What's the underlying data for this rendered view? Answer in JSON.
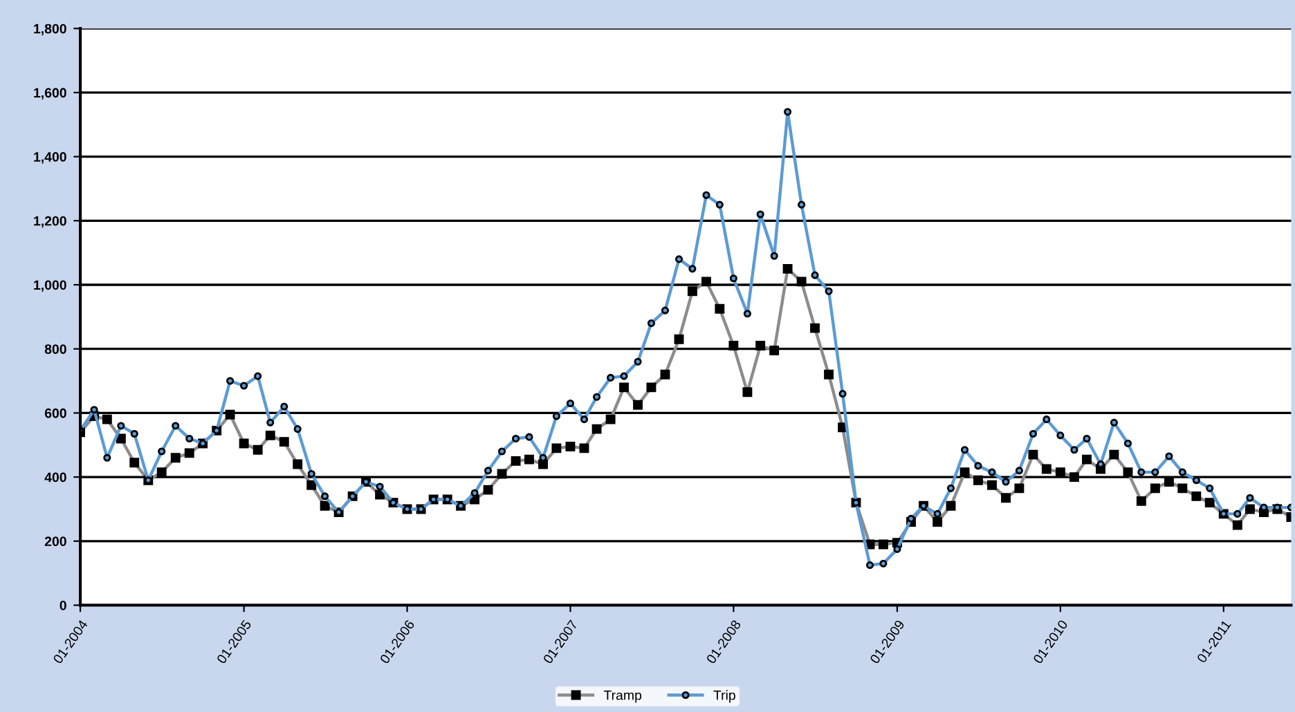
{
  "chart_data": {
    "type": "line",
    "x": [
      "2004-01",
      "2004-02",
      "2004-03",
      "2004-04",
      "2004-05",
      "2004-06",
      "2004-07",
      "2004-08",
      "2004-09",
      "2004-10",
      "2004-11",
      "2004-12",
      "2005-01",
      "2005-02",
      "2005-03",
      "2005-04",
      "2005-05",
      "2005-06",
      "2005-07",
      "2005-08",
      "2005-09",
      "2005-10",
      "2005-11",
      "2005-12",
      "2006-01",
      "2006-02",
      "2006-03",
      "2006-04",
      "2006-05",
      "2006-06",
      "2006-07",
      "2006-08",
      "2006-09",
      "2006-10",
      "2006-11",
      "2006-12",
      "2007-01",
      "2007-02",
      "2007-03",
      "2007-04",
      "2007-05",
      "2007-06",
      "2007-07",
      "2007-08",
      "2007-09",
      "2007-10",
      "2007-11",
      "2007-12",
      "2008-01",
      "2008-02",
      "2008-03",
      "2008-04",
      "2008-05",
      "2008-06",
      "2008-07",
      "2008-08",
      "2008-09",
      "2008-10",
      "2008-11",
      "2008-12",
      "2009-01",
      "2009-02",
      "2009-03",
      "2009-04",
      "2009-05",
      "2009-06",
      "2009-07",
      "2009-08",
      "2009-09",
      "2009-10",
      "2009-11",
      "2009-12",
      "2010-01",
      "2010-02",
      "2010-03",
      "2010-04",
      "2010-05",
      "2010-06",
      "2010-07",
      "2010-08",
      "2010-09",
      "2010-10",
      "2010-11",
      "2010-12",
      "2011-01",
      "2011-02",
      "2011-03",
      "2011-04",
      "2011-05",
      "2011-06"
    ],
    "series": [
      {
        "name": "Tramp",
        "color": "#8c8c8c",
        "marker": "square",
        "values": [
          540,
          590,
          580,
          520,
          445,
          390,
          415,
          460,
          475,
          505,
          545,
          595,
          505,
          485,
          530,
          510,
          440,
          375,
          310,
          290,
          340,
          385,
          345,
          320,
          300,
          300,
          330,
          330,
          310,
          330,
          360,
          410,
          450,
          455,
          440,
          490,
          495,
          490,
          550,
          580,
          680,
          625,
          680,
          720,
          830,
          980,
          1010,
          925,
          810,
          665,
          810,
          795,
          1050,
          1010,
          865,
          720,
          555,
          320,
          190,
          190,
          195,
          260,
          310,
          260,
          310,
          415,
          390,
          375,
          335,
          365,
          470,
          425,
          415,
          400,
          455,
          425,
          470,
          415,
          325,
          365,
          385,
          365,
          340,
          320,
          285,
          250,
          300,
          290,
          300,
          275
        ]
      },
      {
        "name": "Trip",
        "color": "#5b9bd5",
        "marker": "circle",
        "values": [
          545,
          610,
          460,
          560,
          535,
          390,
          480,
          560,
          520,
          505,
          545,
          700,
          685,
          715,
          570,
          620,
          550,
          410,
          340,
          290,
          340,
          385,
          370,
          320,
          300,
          300,
          330,
          330,
          310,
          350,
          420,
          480,
          520,
          525,
          460,
          590,
          630,
          580,
          650,
          710,
          715,
          760,
          880,
          920,
          1080,
          1050,
          1280,
          1250,
          1020,
          910,
          1220,
          1090,
          1540,
          1250,
          1030,
          980,
          660,
          320,
          125,
          130,
          175,
          270,
          310,
          285,
          365,
          485,
          435,
          415,
          385,
          420,
          535,
          580,
          530,
          485,
          520,
          440,
          570,
          505,
          415,
          415,
          465,
          415,
          390,
          365,
          285,
          285,
          335,
          305,
          305,
          305
        ]
      }
    ],
    "xlim": [
      "2004-01",
      "2011-06"
    ],
    "xticks": [
      {
        "value": "2004-01",
        "label": "01-2004"
      },
      {
        "value": "2005-01",
        "label": "01-2005"
      },
      {
        "value": "2006-01",
        "label": "01-2006"
      },
      {
        "value": "2007-01",
        "label": "01-2007"
      },
      {
        "value": "2008-01",
        "label": "01-2008"
      },
      {
        "value": "2009-01",
        "label": "01-2009"
      },
      {
        "value": "2010-01",
        "label": "01-2010"
      },
      {
        "value": "2011-01",
        "label": "01-2011"
      }
    ],
    "ylim": [
      0,
      1800
    ],
    "yticks": [
      0,
      {
        "value": 200,
        "label": "200"
      },
      {
        "value": 400,
        "label": "400"
      },
      {
        "value": 600,
        "label": "600"
      },
      {
        "value": 800,
        "label": "800"
      },
      {
        "value": 1000,
        "label": "1,000"
      },
      {
        "value": 1200,
        "label": "1,200"
      },
      {
        "value": 1400,
        "label": "1,400"
      },
      {
        "value": 1600,
        "label": "1,600"
      },
      {
        "value": 1800,
        "label": "1,800"
      }
    ],
    "grid": "y",
    "legend": "bottom"
  }
}
